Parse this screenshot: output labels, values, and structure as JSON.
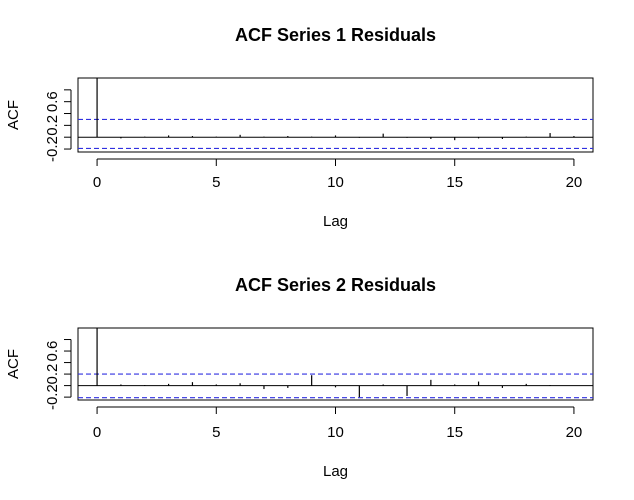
{
  "chart_data": [
    {
      "type": "bar",
      "title": "ACF Series 1 Residuals",
      "xlabel": "Lag",
      "ylabel": "ACF",
      "xlim": [
        -0.8,
        20.8
      ],
      "ylim": [
        -0.25,
        1.0
      ],
      "x_ticks": [
        0,
        5,
        10,
        15,
        20
      ],
      "x_tick_labels": [
        "0",
        "5",
        "10",
        "15",
        "20"
      ],
      "y_ticks": [
        -0.2,
        0.0,
        0.2,
        0.4,
        0.6,
        0.8
      ],
      "y_tick_labels": [
        "-0.2",
        "",
        "0.2",
        "",
        "0.6",
        ""
      ],
      "confidence_bounds": [
        0.3,
        -0.19
      ],
      "confidence_color": "#3030e0",
      "grid": false,
      "x": [
        0,
        1,
        2,
        3,
        4,
        5,
        6,
        7,
        8,
        9,
        10,
        11,
        12,
        13,
        14,
        15,
        16,
        17,
        18,
        19,
        20
      ],
      "values": [
        1.0,
        -0.02,
        0.01,
        0.03,
        0.02,
        0.01,
        0.04,
        0.01,
        0.02,
        0.01,
        0.03,
        -0.01,
        0.06,
        -0.01,
        -0.03,
        -0.05,
        -0.02,
        -0.03,
        0.01,
        0.07,
        0.02
      ]
    },
    {
      "type": "bar",
      "title": "ACF Series 2 Residuals",
      "xlabel": "Lag",
      "ylabel": "ACF",
      "xlim": [
        -0.8,
        20.8
      ],
      "ylim": [
        -0.25,
        1.0
      ],
      "x_ticks": [
        0,
        5,
        10,
        15,
        20
      ],
      "x_tick_labels": [
        "0",
        "5",
        "10",
        "15",
        "20"
      ],
      "y_ticks": [
        -0.2,
        0.0,
        0.2,
        0.4,
        0.6,
        0.8
      ],
      "y_tick_labels": [
        "-0.2",
        "",
        "0.2",
        "",
        "0.6",
        ""
      ],
      "confidence_bounds": [
        0.2,
        -0.21
      ],
      "confidence_color": "#3030e0",
      "grid": false,
      "x": [
        0,
        1,
        2,
        3,
        4,
        5,
        6,
        7,
        8,
        9,
        10,
        11,
        12,
        13,
        14,
        15,
        16,
        17,
        18,
        19,
        20
      ],
      "values": [
        1.0,
        0.02,
        0.01,
        0.03,
        0.06,
        0.02,
        0.04,
        -0.06,
        -0.04,
        0.18,
        -0.03,
        -0.2,
        0.02,
        -0.18,
        0.1,
        0.02,
        0.07,
        -0.04,
        0.03,
        0.01,
        0.0
      ]
    }
  ]
}
